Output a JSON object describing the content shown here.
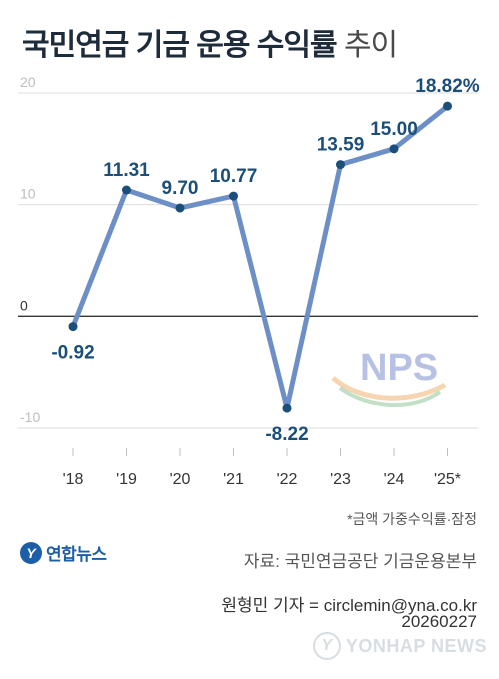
{
  "title": {
    "main": "국민연금 기금 운용 수익률",
    "suffix": "추이"
  },
  "chart_data": {
    "type": "line",
    "categories": [
      "'18",
      "'19",
      "'20",
      "'21",
      "'22",
      "'23",
      "'24",
      "'25*"
    ],
    "values": [
      -0.92,
      11.31,
      9.7,
      10.77,
      -8.22,
      13.59,
      15.0,
      18.82
    ],
    "data_labels": [
      "-0.92",
      "11.31",
      "9.70",
      "10.77",
      "-8.22",
      "13.59",
      "15.00",
      "18.82%"
    ],
    "yticks": [
      20,
      10,
      0,
      -10
    ],
    "ylim": [
      -10,
      20
    ],
    "grid": "horizontal",
    "title": "",
    "xlabel": "",
    "ylabel": ""
  },
  "colors": {
    "line": "#6d8fc7",
    "point": "#1b4f7a",
    "label": "#1b4f7a",
    "grid": "#dcdcdc",
    "zero_line": "#333333",
    "tick": "#bfbfbf"
  },
  "nps_logo_text": "NPS",
  "footnote": "*금액 가중수익률·잠정",
  "logo": {
    "mark": "Y",
    "text": "연합뉴스",
    "icon": "yonhap-logo-icon"
  },
  "source": "자료: 국민연금공단 기금운용본부",
  "byline": "원형민 기자 = circlemin@yna.co.kr",
  "date": "20260227",
  "watermark": "YONHAP NEWS"
}
